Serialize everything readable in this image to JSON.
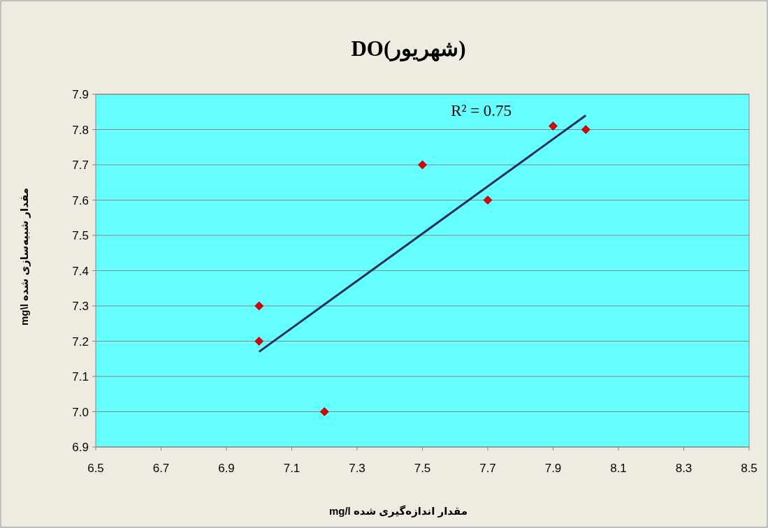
{
  "chart_data": {
    "type": "scatter",
    "title": "DO(شهریور)",
    "xlabel": "مقدار اندازه‌گیری شده   mg/l",
    "ylabel": "مقدار شبیه‌سازی شده   mg\\l",
    "xlim": [
      6.5,
      8.5
    ],
    "ylim": [
      6.9,
      7.9
    ],
    "xticks": [
      6.5,
      6.7,
      6.9,
      7.1,
      7.3,
      7.5,
      7.7,
      7.9,
      8.1,
      8.3,
      {
        "value": 8.5,
        "label": "8.5"
      }
    ],
    "yticks": [
      6.9,
      {
        "value": 7,
        "label": "7.0"
      },
      7.1,
      7.2,
      7.3,
      7.4,
      7.5,
      7.6,
      7.7,
      7.8,
      7.9
    ],
    "grid": "y",
    "marker": "diamond",
    "series": [
      {
        "type": "scatter",
        "color": "#e00000",
        "x": [
          7.0,
          7.0,
          7.2,
          7.5,
          7.7,
          7.9,
          8.0
        ],
        "values": [
          7.3,
          7.2,
          7.0,
          7.7,
          7.6,
          7.81,
          7.8
        ]
      },
      {
        "type": "line",
        "color": "#1f2d5a",
        "marker": "none",
        "x": [
          7.0,
          8.0
        ],
        "values": [
          7.17,
          7.84
        ]
      }
    ],
    "annotations": [
      "R² = 0.75"
    ]
  }
}
